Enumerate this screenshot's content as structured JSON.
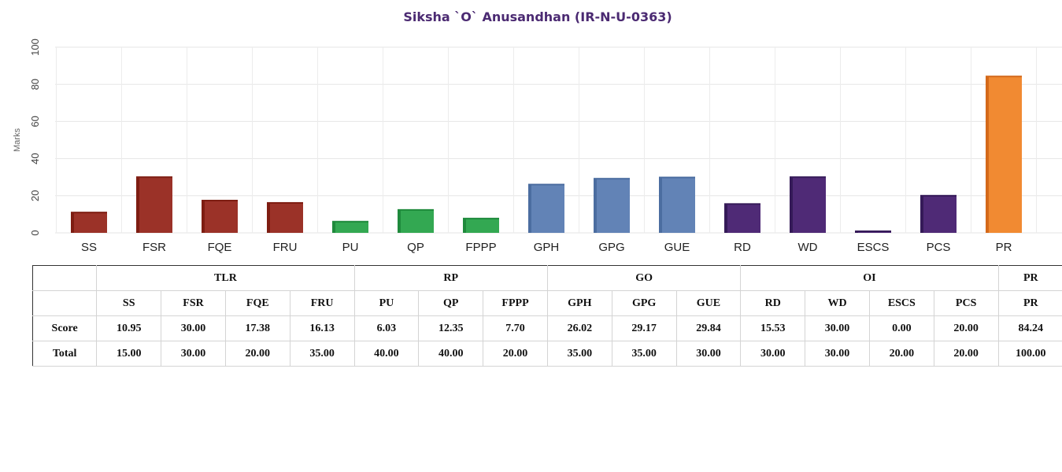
{
  "chart_data": {
    "type": "bar",
    "title": "Siksha `O` Anusandhan (IR-N-U-0363)",
    "ylabel": "Marks",
    "xlabel": "",
    "ylim": [
      0,
      100
    ],
    "yticks": [
      0,
      20,
      40,
      60,
      80,
      100
    ],
    "grid": true,
    "categories": [
      "SS",
      "FSR",
      "FQE",
      "FRU",
      "PU",
      "QP",
      "FPPP",
      "GPH",
      "GPG",
      "GUE",
      "RD",
      "WD",
      "ESCS",
      "PCS",
      "PR"
    ],
    "values": [
      10.95,
      30.0,
      17.38,
      16.13,
      6.03,
      12.35,
      7.7,
      26.02,
      29.17,
      29.84,
      15.53,
      30.0,
      0.0,
      20.0,
      84.24
    ],
    "colors": [
      "#9b3228",
      "#9b3228",
      "#9b3228",
      "#9b3228",
      "#33a852",
      "#33a852",
      "#33a852",
      "#6283b6",
      "#6283b6",
      "#6283b6",
      "#4f2a76",
      "#4f2a76",
      "#4f2a76",
      "#4f2a76",
      "#f18a32"
    ],
    "side_colors": [
      "#7e1d12",
      "#7e1d12",
      "#7e1d12",
      "#7e1d12",
      "#1f8a3c",
      "#1f8a3c",
      "#1f8a3c",
      "#4b6da0",
      "#4b6da0",
      "#4b6da0",
      "#351a58",
      "#351a58",
      "#351a58",
      "#351a58",
      "#d4691a"
    ]
  },
  "table": {
    "groups": [
      {
        "label": "TLR",
        "span": 4
      },
      {
        "label": "RP",
        "span": 3
      },
      {
        "label": "GO",
        "span": 3
      },
      {
        "label": "OI",
        "span": 4
      },
      {
        "label": "PR",
        "span": 1
      }
    ],
    "columns": [
      "SS",
      "FSR",
      "FQE",
      "FRU",
      "PU",
      "QP",
      "FPPP",
      "GPH",
      "GPG",
      "GUE",
      "RD",
      "WD",
      "ESCS",
      "PCS",
      "PR"
    ],
    "rows": [
      {
        "label": "Score",
        "values": [
          "10.95",
          "30.00",
          "17.38",
          "16.13",
          "6.03",
          "12.35",
          "7.70",
          "26.02",
          "29.17",
          "29.84",
          "15.53",
          "30.00",
          "0.00",
          "20.00",
          "84.24"
        ]
      },
      {
        "label": "Total",
        "values": [
          "15.00",
          "30.00",
          "20.00",
          "35.00",
          "40.00",
          "40.00",
          "20.00",
          "35.00",
          "35.00",
          "30.00",
          "30.00",
          "30.00",
          "20.00",
          "20.00",
          "100.00"
        ]
      }
    ]
  }
}
